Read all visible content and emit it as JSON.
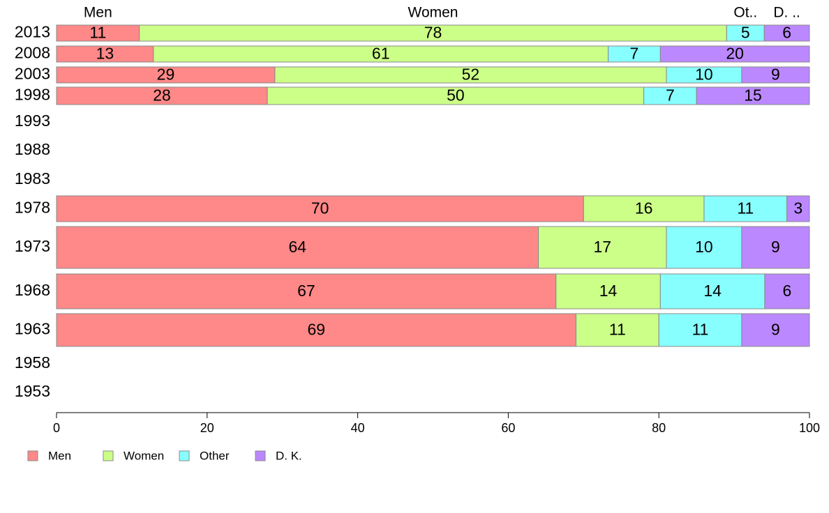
{
  "chart_data": {
    "type": "bar",
    "orientation": "horizontal",
    "stacked": true,
    "xlim": [
      0,
      100
    ],
    "x_ticks": [
      "0",
      "20",
      "40",
      "60",
      "80",
      "100"
    ],
    "legend_position": "bottom-left",
    "top_category_labels": [
      "Men",
      "Women",
      "Ot..",
      "D. .."
    ],
    "categories": [
      "2013",
      "2008",
      "2003",
      "1998",
      "1993",
      "1988",
      "1983",
      "1978",
      "1973",
      "1968",
      "1963",
      "1958",
      "1953"
    ],
    "series": [
      {
        "name": "Men",
        "color": "#ff8888",
        "values": [
          11,
          13,
          29,
          28,
          null,
          null,
          null,
          70,
          64,
          67,
          69,
          null,
          null
        ]
      },
      {
        "name": "Women",
        "color": "#ccff88",
        "values": [
          78,
          61,
          52,
          50,
          null,
          null,
          null,
          16,
          17,
          14,
          11,
          null,
          null
        ]
      },
      {
        "name": "Other",
        "color": "#88ffff",
        "values": [
          5,
          7,
          10,
          7,
          null,
          null,
          null,
          11,
          10,
          14,
          11,
          null,
          null
        ]
      },
      {
        "name": "D. K.",
        "color": "#bb88ff",
        "values": [
          6,
          20,
          9,
          15,
          null,
          null,
          null,
          3,
          9,
          6,
          9,
          null,
          null
        ]
      }
    ],
    "legend": [
      "Men",
      "Women",
      "Other",
      "D. K."
    ]
  }
}
